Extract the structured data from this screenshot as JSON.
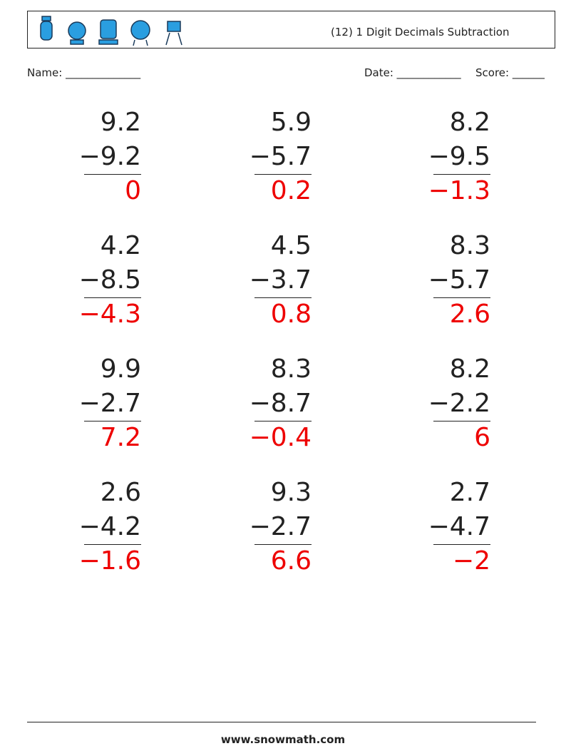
{
  "header": {
    "title": "(12) 1 Digit Decimals Subtraction"
  },
  "fields": {
    "name": "Name: ______________",
    "date": "Date: ____________",
    "score": "Score: ______"
  },
  "problems": [
    {
      "top": "9.2",
      "bottom": "−9.2",
      "answer": "0"
    },
    {
      "top": "5.9",
      "bottom": "−5.7",
      "answer": "0.2"
    },
    {
      "top": "8.2",
      "bottom": "−9.5",
      "answer": "−1.3"
    },
    {
      "top": "4.2",
      "bottom": "−8.5",
      "answer": "−4.3"
    },
    {
      "top": "4.5",
      "bottom": "−3.7",
      "answer": "0.8"
    },
    {
      "top": "8.3",
      "bottom": "−5.7",
      "answer": "2.6"
    },
    {
      "top": "9.9",
      "bottom": "−2.7",
      "answer": "7.2"
    },
    {
      "top": "8.3",
      "bottom": "−8.7",
      "answer": "−0.4"
    },
    {
      "top": "8.2",
      "bottom": "−2.2",
      "answer": "6"
    },
    {
      "top": "2.6",
      "bottom": "−4.2",
      "answer": "−1.6"
    },
    {
      "top": "9.3",
      "bottom": "−2.7",
      "answer": "6.6"
    },
    {
      "top": "2.7",
      "bottom": "−4.7",
      "answer": "−2"
    }
  ],
  "footer": {
    "site": "www.snowmath.com"
  }
}
